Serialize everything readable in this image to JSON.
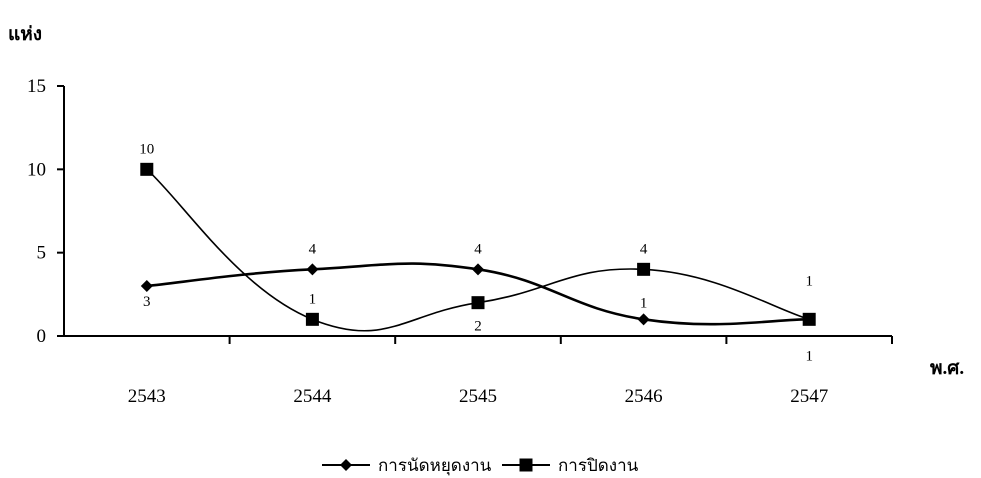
{
  "chart_data": {
    "type": "line",
    "ylabel": "แห่ง",
    "xlabel": "พ.ศ.",
    "categories": [
      "2543",
      "2544",
      "2545",
      "2546",
      "2547"
    ],
    "ylim": [
      0,
      15
    ],
    "yticks": [
      0,
      5,
      10,
      15
    ],
    "grid": false,
    "legend_position": "bottom",
    "series": [
      {
        "name": "การนัดหยุดงาน",
        "marker": "diamond",
        "values": [
          3,
          4,
          4,
          1,
          1
        ],
        "labels": [
          "3",
          "4",
          "4",
          "1",
          "1"
        ],
        "color": "#000000"
      },
      {
        "name": "การปิดงาน",
        "marker": "square",
        "values": [
          10,
          1,
          2,
          4,
          1
        ],
        "labels": [
          "10",
          "1",
          "2",
          "4",
          "1"
        ],
        "color": "#000000"
      }
    ]
  }
}
